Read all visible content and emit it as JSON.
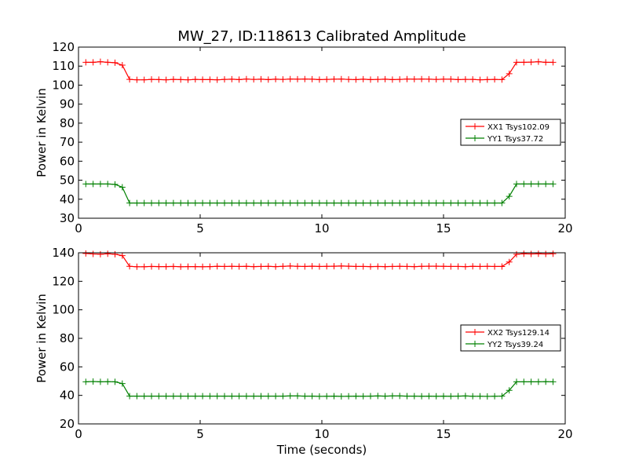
{
  "title": "MW_27, ID:118613 Calibrated Amplitude",
  "xlabel": "Time (seconds)",
  "chart_data": [
    {
      "type": "line",
      "xlim": [
        0,
        20
      ],
      "ylim": [
        30,
        120
      ],
      "xticks": [
        0,
        5,
        10,
        15,
        20
      ],
      "yticks": [
        30,
        40,
        50,
        60,
        70,
        80,
        90,
        100,
        110,
        120
      ],
      "ylabel": "Power in Kelvin",
      "grid": false,
      "legend_position": "center-right",
      "series": [
        {
          "name": "XX1 Tsys102.09",
          "color": "#ff0000",
          "x": [
            0.3,
            0.6,
            0.9,
            1.2,
            1.5,
            1.8,
            2.1,
            2.4,
            2.7,
            3.0,
            3.3,
            3.6,
            3.9,
            4.2,
            4.5,
            4.8,
            5.1,
            5.4,
            5.7,
            6.0,
            6.3,
            6.6,
            6.9,
            7.2,
            7.5,
            7.8,
            8.1,
            8.4,
            8.7,
            9.0,
            9.3,
            9.6,
            9.9,
            10.2,
            10.5,
            10.8,
            11.1,
            11.4,
            11.7,
            12.0,
            12.3,
            12.6,
            12.9,
            13.2,
            13.5,
            13.8,
            14.1,
            14.4,
            14.7,
            15.0,
            15.3,
            15.6,
            15.9,
            16.2,
            16.5,
            16.8,
            17.1,
            17.4,
            17.7,
            18.0,
            18.3,
            18.6,
            18.9,
            19.2,
            19.5
          ],
          "y": [
            112,
            112,
            112.3,
            112,
            111.8,
            110.5,
            103,
            102.8,
            102.8,
            103,
            102.9,
            102.8,
            103,
            102.9,
            102.8,
            103,
            102.9,
            102.9,
            102.8,
            103,
            103.1,
            102.9,
            103.2,
            103,
            103.1,
            102.9,
            103.1,
            103,
            103.2,
            103.1,
            103.2,
            103.1,
            102.9,
            103,
            103.1,
            103.2,
            103,
            102.9,
            103.1,
            102.9,
            103,
            103.1,
            102.9,
            103,
            103.2,
            103.1,
            103.2,
            103.1,
            103,
            103.1,
            103.1,
            102.9,
            103,
            103,
            102.8,
            102.9,
            103,
            102.9,
            106,
            112,
            112,
            112.1,
            112.3,
            112,
            112
          ]
        },
        {
          "name": "YY1 Tsys37.72",
          "color": "#008000",
          "x": [
            0.3,
            0.6,
            0.9,
            1.2,
            1.5,
            1.8,
            2.1,
            2.4,
            2.7,
            3.0,
            3.3,
            3.6,
            3.9,
            4.2,
            4.5,
            4.8,
            5.1,
            5.4,
            5.7,
            6.0,
            6.3,
            6.6,
            6.9,
            7.2,
            7.5,
            7.8,
            8.1,
            8.4,
            8.7,
            9.0,
            9.3,
            9.6,
            9.9,
            10.2,
            10.5,
            10.8,
            11.1,
            11.4,
            11.7,
            12.0,
            12.3,
            12.6,
            12.9,
            13.2,
            13.5,
            13.8,
            14.1,
            14.4,
            14.7,
            15.0,
            15.3,
            15.6,
            15.9,
            16.2,
            16.5,
            16.8,
            17.1,
            17.4,
            17.7,
            18.0,
            18.3,
            18.6,
            18.9,
            19.2,
            19.5
          ],
          "y": [
            48,
            48,
            48,
            48,
            47.8,
            46.3,
            38,
            38,
            38,
            38,
            38,
            38,
            38,
            38,
            38,
            38,
            38,
            38,
            38,
            38,
            38,
            38,
            38,
            38,
            38,
            38,
            38,
            38,
            38,
            38,
            38,
            38,
            38,
            38,
            38,
            38,
            38,
            38,
            38,
            38,
            38,
            38,
            38,
            38,
            38,
            38,
            38,
            38,
            38,
            38,
            38,
            38,
            38,
            38,
            38,
            38,
            38,
            38,
            41.5,
            48,
            48,
            48,
            48,
            48,
            48
          ]
        }
      ]
    },
    {
      "type": "line",
      "xlim": [
        0,
        20
      ],
      "ylim": [
        20,
        140
      ],
      "xticks": [
        0,
        5,
        10,
        15,
        20
      ],
      "yticks": [
        20,
        40,
        60,
        80,
        100,
        120,
        140
      ],
      "ylabel": "Power in Kelvin",
      "grid": false,
      "legend_position": "center-right",
      "series": [
        {
          "name": "XX2 Tsys129.14",
          "color": "#ff0000",
          "x": [
            0.3,
            0.6,
            0.9,
            1.2,
            1.5,
            1.8,
            2.1,
            2.4,
            2.7,
            3.0,
            3.3,
            3.6,
            3.9,
            4.2,
            4.5,
            4.8,
            5.1,
            5.4,
            5.7,
            6.0,
            6.3,
            6.6,
            6.9,
            7.2,
            7.5,
            7.8,
            8.1,
            8.4,
            8.7,
            9.0,
            9.3,
            9.6,
            9.9,
            10.2,
            10.5,
            10.8,
            11.1,
            11.4,
            11.7,
            12.0,
            12.3,
            12.6,
            12.9,
            13.2,
            13.5,
            13.8,
            14.1,
            14.4,
            14.7,
            15.0,
            15.3,
            15.6,
            15.9,
            16.2,
            16.5,
            16.8,
            17.1,
            17.4,
            17.7,
            18.0,
            18.3,
            18.6,
            18.9,
            19.2,
            19.5
          ],
          "y": [
            139.5,
            139.2,
            139,
            139.3,
            139,
            138,
            130.5,
            130.2,
            130.2,
            130.4,
            130.3,
            130.3,
            130.4,
            130.2,
            130.3,
            130.3,
            130.2,
            130.3,
            130.5,
            130.4,
            130.5,
            130.4,
            130.5,
            130.3,
            130.4,
            130.5,
            130.3,
            130.5,
            130.7,
            130.5,
            130.4,
            130.6,
            130.4,
            130.5,
            130.6,
            130.7,
            130.6,
            130.4,
            130.4,
            130.3,
            130.4,
            130.3,
            130.4,
            130.5,
            130.4,
            130.3,
            130.5,
            130.6,
            130.6,
            130.5,
            130.4,
            130.4,
            130.3,
            130.5,
            130.4,
            130.5,
            130.4,
            130.4,
            133.5,
            139,
            139.3,
            139.2,
            139.3,
            139.2,
            139.3
          ]
        },
        {
          "name": "YY2 Tsys39.24",
          "color": "#008000",
          "x": [
            0.3,
            0.6,
            0.9,
            1.2,
            1.5,
            1.8,
            2.1,
            2.4,
            2.7,
            3.0,
            3.3,
            3.6,
            3.9,
            4.2,
            4.5,
            4.8,
            5.1,
            5.4,
            5.7,
            6.0,
            6.3,
            6.6,
            6.9,
            7.2,
            7.5,
            7.8,
            8.1,
            8.4,
            8.7,
            9.0,
            9.3,
            9.6,
            9.9,
            10.2,
            10.5,
            10.8,
            11.1,
            11.4,
            11.7,
            12.0,
            12.3,
            12.6,
            12.9,
            13.2,
            13.5,
            13.8,
            14.1,
            14.4,
            14.7,
            15.0,
            15.3,
            15.6,
            15.9,
            16.2,
            16.5,
            16.8,
            17.1,
            17.4,
            17.7,
            18.0,
            18.3,
            18.6,
            18.9,
            19.2,
            19.5
          ],
          "y": [
            49.5,
            49.7,
            49.5,
            49.6,
            49.5,
            48.3,
            39.5,
            39.5,
            39.5,
            39.5,
            39.5,
            39.5,
            39.5,
            39.5,
            39.5,
            39.5,
            39.5,
            39.5,
            39.5,
            39.5,
            39.5,
            39.5,
            39.5,
            39.5,
            39.5,
            39.5,
            39.5,
            39.5,
            39.6,
            39.6,
            39.5,
            39.5,
            39.3,
            39.4,
            39.5,
            39.3,
            39.4,
            39.5,
            39.4,
            39.5,
            39.6,
            39.5,
            39.6,
            39.6,
            39.5,
            39.5,
            39.4,
            39.5,
            39.4,
            39.5,
            39.4,
            39.5,
            39.6,
            39.4,
            39.4,
            39.3,
            39.4,
            39.5,
            43.5,
            49.5,
            49.5,
            49.5,
            49.5,
            49.6,
            49.5
          ]
        }
      ]
    }
  ]
}
